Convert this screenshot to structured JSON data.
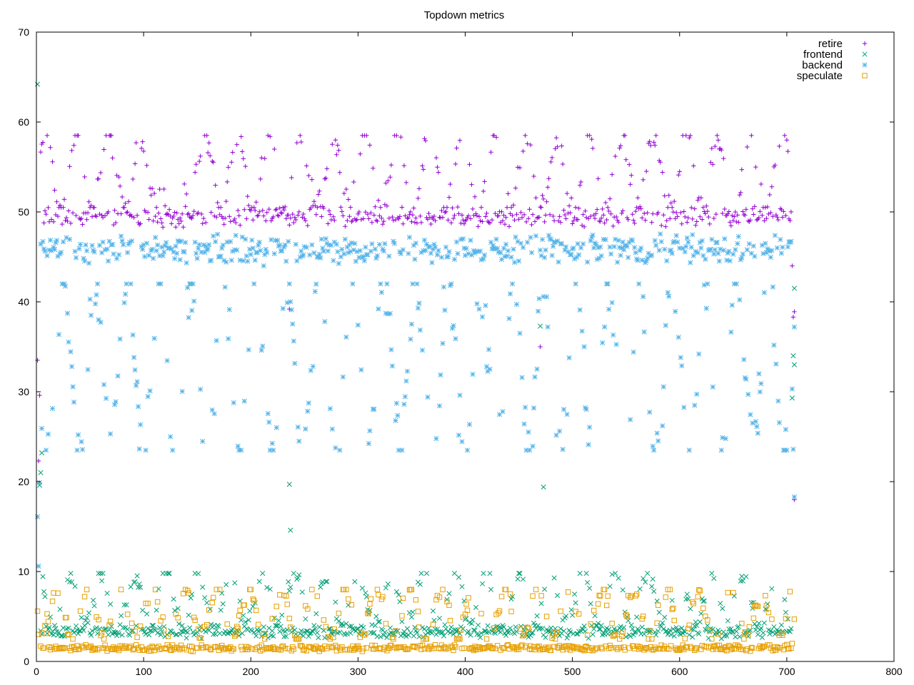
{
  "chart_data": {
    "type": "scatter",
    "title": "Topdown metrics",
    "xlabel": "",
    "ylabel": "",
    "xlim": [
      0,
      800
    ],
    "ylim": [
      0,
      70
    ],
    "xticks": [
      0,
      100,
      200,
      300,
      400,
      500,
      600,
      700,
      800
    ],
    "yticks": [
      0,
      10,
      20,
      30,
      40,
      50,
      60,
      70
    ],
    "legend_position": "top-right",
    "x_count": 707,
    "series": [
      {
        "name": "retire",
        "marker": "plus",
        "color": "#9400d3",
        "bands": [
          {
            "weight": 0.62,
            "center": 49.5,
            "spread": 0.8
          },
          {
            "weight": 0.38,
            "low": 50.5,
            "high": 58.5
          }
        ],
        "special_points": [
          {
            "x": 1,
            "y": 33.5
          },
          {
            "x": 2,
            "y": 22.3
          },
          {
            "x": 3,
            "y": 29.6
          },
          {
            "x": 236,
            "y": 39.2
          },
          {
            "x": 470,
            "y": 35.0
          },
          {
            "x": 705,
            "y": 44.0
          },
          {
            "x": 706,
            "y": 38.3
          },
          {
            "x": 707,
            "y": 38.9
          },
          {
            "x": 707,
            "y": 18.0
          }
        ]
      },
      {
        "name": "frontend",
        "marker": "cross",
        "color": "#009e73",
        "bands": [
          {
            "weight": 0.65,
            "center": 3.3,
            "spread": 0.5
          },
          {
            "weight": 0.35,
            "low": 4.0,
            "high": 9.8
          }
        ],
        "special_points": [
          {
            "x": 1,
            "y": 64.2
          },
          {
            "x": 3,
            "y": 19.6
          },
          {
            "x": 4,
            "y": 21.0
          },
          {
            "x": 5,
            "y": 23.2
          },
          {
            "x": 236,
            "y": 19.7
          },
          {
            "x": 237,
            "y": 14.6
          },
          {
            "x": 470,
            "y": 37.3
          },
          {
            "x": 473,
            "y": 19.4
          },
          {
            "x": 705,
            "y": 29.3
          },
          {
            "x": 706,
            "y": 34.0
          },
          {
            "x": 707,
            "y": 33.0
          },
          {
            "x": 707,
            "y": 41.5
          }
        ]
      },
      {
        "name": "backend",
        "marker": "star",
        "color": "#56b4e9",
        "bands": [
          {
            "weight": 0.62,
            "center": 45.8,
            "spread": 1.2
          },
          {
            "weight": 0.38,
            "low": 23.5,
            "high": 42.0
          }
        ],
        "special_points": [
          {
            "x": 1,
            "y": 16.1
          },
          {
            "x": 2,
            "y": 10.6
          },
          {
            "x": 3,
            "y": 19.9
          },
          {
            "x": 705,
            "y": 30.3
          },
          {
            "x": 706,
            "y": 23.6
          },
          {
            "x": 707,
            "y": 18.3
          },
          {
            "x": 707,
            "y": 37.2
          }
        ]
      },
      {
        "name": "speculate",
        "marker": "square",
        "color": "#e69f00",
        "bands": [
          {
            "weight": 0.62,
            "center": 1.5,
            "spread": 0.25
          },
          {
            "weight": 0.38,
            "low": 2.5,
            "high": 8.0
          }
        ],
        "special_points": [
          {
            "x": 1,
            "y": 5.6
          },
          {
            "x": 2,
            "y": 3.0
          },
          {
            "x": 705,
            "y": 2.0
          },
          {
            "x": 707,
            "y": 4.7
          }
        ]
      }
    ]
  }
}
